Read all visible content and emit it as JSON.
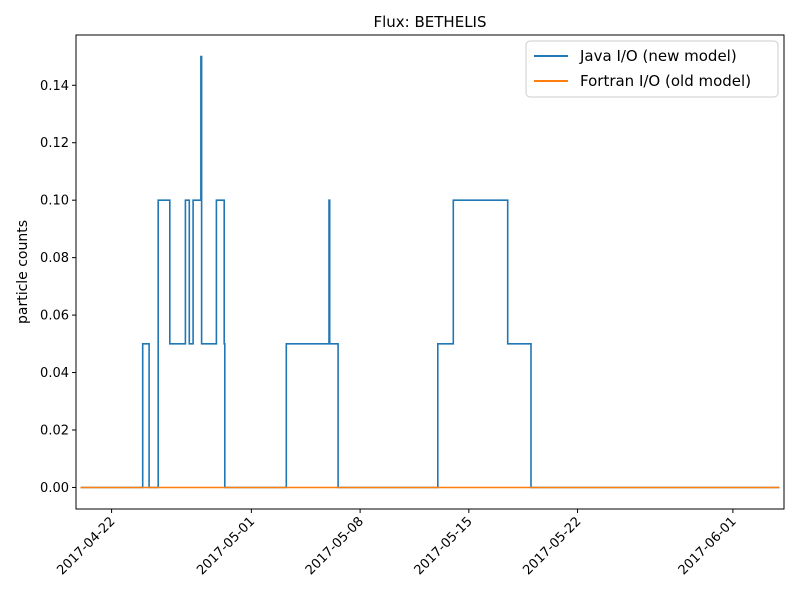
{
  "chart_data": {
    "type": "line",
    "title": "Flux: BETHELIS",
    "xlabel": "",
    "ylabel": "particle counts",
    "xlim": [
      "2017-04-19T17:00",
      "2017-06-04T07:00"
    ],
    "ylim": [
      -0.0075,
      0.1575
    ],
    "grid": false,
    "legend_position": "top-right",
    "x_ticks": [
      "2017-04-22",
      "2017-05-01",
      "2017-05-08",
      "2017-05-15",
      "2017-05-22",
      "2017-06-01"
    ],
    "y_ticks": [
      "0.00",
      "0.02",
      "0.04",
      "0.06",
      "0.08",
      "0.10",
      "0.12",
      "0.14"
    ],
    "series": [
      {
        "name": "Java I/O (new model)",
        "color": "#1f77b4",
        "step": true,
        "points": [
          [
            "2017-04-20T00:00",
            0.0
          ],
          [
            "2017-04-24T00:00",
            0.05
          ],
          [
            "2017-04-24T10:00",
            0.0
          ],
          [
            "2017-04-25T00:00",
            0.1
          ],
          [
            "2017-04-25T18:00",
            0.05
          ],
          [
            "2017-04-26T18:00",
            0.1
          ],
          [
            "2017-04-27T00:00",
            0.05
          ],
          [
            "2017-04-27T06:00",
            0.1
          ],
          [
            "2017-04-27T18:00",
            0.15
          ],
          [
            "2017-04-27T19:00",
            0.05
          ],
          [
            "2017-04-28T18:00",
            0.1
          ],
          [
            "2017-04-29T06:00",
            0.05
          ],
          [
            "2017-04-29T07:00",
            0.0
          ],
          [
            "2017-05-03T06:00",
            0.05
          ],
          [
            "2017-05-06T00:00",
            0.1
          ],
          [
            "2017-05-06T01:00",
            0.05
          ],
          [
            "2017-05-06T14:00",
            0.0
          ],
          [
            "2017-05-13T00:00",
            0.05
          ],
          [
            "2017-05-14T00:00",
            0.1
          ],
          [
            "2017-05-17T12:00",
            0.05
          ],
          [
            "2017-05-19T00:00",
            0.0
          ],
          [
            "2017-06-04T00:00",
            0.0
          ]
        ]
      },
      {
        "name": "Fortran I/O (old model)",
        "color": "#ff7f0e",
        "step": false,
        "points": [
          [
            "2017-04-20T00:00",
            0.0
          ],
          [
            "2017-06-04T00:00",
            0.0
          ]
        ]
      }
    ]
  }
}
